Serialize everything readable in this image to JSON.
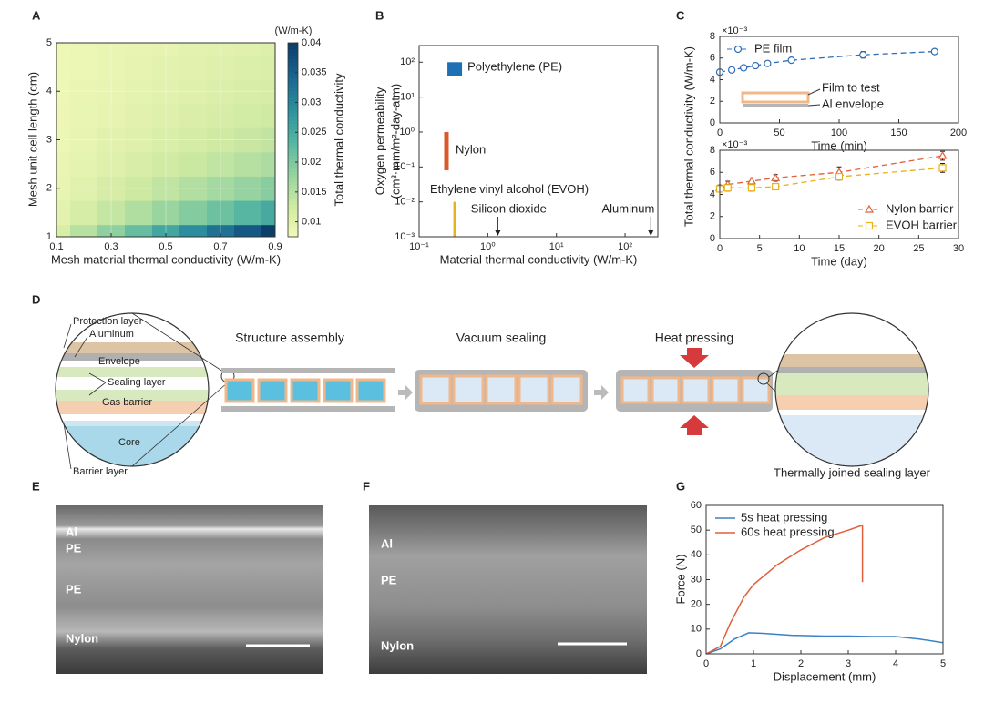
{
  "panel_labels": [
    "A",
    "B",
    "C",
    "D",
    "E",
    "F",
    "G"
  ],
  "chart_data": [
    {
      "type": "heatmap",
      "xlabel": "Mesh material thermal conductivity (W/m-K)",
      "ylabel": "Mesh unit cell length (cm)",
      "x": [
        0.1,
        0.2,
        0.3,
        0.4,
        0.5,
        0.6,
        0.7,
        0.8,
        0.9
      ],
      "y": [
        1,
        1.5,
        2,
        2.5,
        3,
        3.5,
        4,
        4.5,
        5
      ],
      "z": [
        [
          0.0116,
          0.0151,
          0.0187,
          0.0222,
          0.0258,
          0.0293,
          0.0329,
          0.0364,
          0.04
        ],
        [
          0.0099,
          0.0119,
          0.0138,
          0.0157,
          0.0177,
          0.0196,
          0.0216,
          0.0235,
          0.0254
        ],
        [
          0.0093,
          0.0105,
          0.0118,
          0.013,
          0.0143,
          0.0155,
          0.0168,
          0.0181,
          0.0193
        ],
        [
          0.0089,
          0.0098,
          0.0107,
          0.0116,
          0.0125,
          0.0134,
          0.0143,
          0.0152,
          0.0161
        ],
        [
          0.0087,
          0.0094,
          0.0101,
          0.0107,
          0.0114,
          0.0121,
          0.0128,
          0.0135,
          0.0142
        ],
        [
          0.0085,
          0.0091,
          0.0096,
          0.0102,
          0.0107,
          0.0113,
          0.0118,
          0.0123,
          0.0129
        ],
        [
          0.0084,
          0.0089,
          0.0093,
          0.0098,
          0.0102,
          0.0107,
          0.0111,
          0.0116,
          0.012
        ],
        [
          0.0084,
          0.0087,
          0.0091,
          0.0095,
          0.0099,
          0.0102,
          0.0106,
          0.011,
          0.0114
        ],
        [
          0.0083,
          0.0086,
          0.009,
          0.0093,
          0.0096,
          0.0099,
          0.0102,
          0.0105,
          0.0109
        ]
      ],
      "xlim": [
        0.1,
        0.9
      ],
      "xticks": [
        0.1,
        0.3,
        0.5,
        0.7,
        0.9
      ],
      "ylim": [
        1,
        5
      ],
      "yticks": [
        1,
        2,
        3,
        4,
        5
      ],
      "clim": [
        0.0075,
        0.04
      ],
      "cticks": [
        0.01,
        0.015,
        0.02,
        0.025,
        0.03,
        0.035,
        0.04
      ],
      "colorbar_label": "Total thermal conductivity",
      "colorbar_unit": "(W/m-K)",
      "colormap": [
        "#f4f9ba",
        "#cfeaa2",
        "#93d2a0",
        "#54b5a2",
        "#2b8e9d",
        "#1a6590",
        "#0a3f6a"
      ],
      "grid": true
    },
    {
      "type": "range",
      "xlabel": "Material thermal conductivity (W/m-K)",
      "ylabel": [
        "Oxygen permeability",
        "(cm³·mm/m²-day-atm)"
      ],
      "xscale": "log",
      "yscale": "log",
      "xlim": [
        0.1,
        300
      ],
      "xticks": [
        {
          "value": 0.1,
          "label": "10⁻¹"
        },
        {
          "value": 1,
          "label": "10⁰"
        },
        {
          "value": 10,
          "label": "10¹"
        },
        {
          "value": 100,
          "label": "10²"
        }
      ],
      "ylim": [
        0.001,
        300
      ],
      "yticks": [
        {
          "value": 0.001,
          "label": "10⁻³"
        },
        {
          "value": 0.01,
          "label": "10⁻²"
        },
        {
          "value": 0.1,
          "label": "10⁻¹"
        },
        {
          "value": 1,
          "label": "10⁰"
        },
        {
          "value": 10,
          "label": "10¹"
        },
        {
          "value": 100,
          "label": "10²"
        }
      ],
      "series": [
        {
          "name": "Polyethylene (PE)",
          "color": "#1f6fb5",
          "x": 0.33,
          "values": [
            40,
            100
          ]
        },
        {
          "name": "Nylon",
          "color": "#d9592b",
          "x": 0.25,
          "values": [
            0.08,
            1
          ]
        },
        {
          "name": "Ethylene vinyl alcohol (EVOH)",
          "color": "#e8b21c",
          "x": 0.33,
          "values": [
            0.001,
            0.01
          ]
        }
      ],
      "annotations": [
        {
          "label": "Silicon dioxide",
          "x": 1.4
        },
        {
          "label": "Aluminum",
          "x": 237
        }
      ]
    },
    {
      "type": "errorline",
      "xlabel": "Time (min)",
      "ylabel": "Total thermal conductivity (W/m-K)",
      "exponent_label": "×10⁻³",
      "xlim": [
        0,
        200
      ],
      "xticks": [
        0,
        50,
        100,
        150,
        200
      ],
      "ylim": [
        0,
        8
      ],
      "yticks": [
        0,
        2,
        4,
        6,
        8
      ],
      "series": [
        {
          "name": "PE film",
          "color": "#2e6db4",
          "marker": "circle",
          "x": [
            0,
            10,
            20,
            30,
            40,
            60,
            120,
            180
          ],
          "values": [
            4.7,
            4.9,
            5.1,
            5.3,
            5.5,
            5.8,
            6.3,
            6.6
          ],
          "errors": [
            0.15,
            0.15,
            0.15,
            0.1,
            0.1,
            0.1,
            0.3,
            0.15
          ]
        }
      ],
      "legend": "upper left",
      "inset_labels": [
        "Film to test",
        "Al envelope"
      ]
    },
    {
      "type": "errorline",
      "xlabel": "Time (day)",
      "exponent_label": "×10⁻³",
      "xlim": [
        0,
        30
      ],
      "xticks": [
        0,
        5,
        10,
        15,
        20,
        25,
        30
      ],
      "ylim": [
        0,
        8
      ],
      "yticks": [
        0,
        2,
        4,
        6,
        8
      ],
      "series": [
        {
          "name": "Nylon barrier",
          "color": "#e0603a",
          "marker": "triangle",
          "x": [
            0,
            1,
            4,
            7,
            15,
            28
          ],
          "values": [
            4.6,
            4.9,
            5.2,
            5.5,
            6.0,
            7.5
          ],
          "errors": [
            0.25,
            0.3,
            0.3,
            0.3,
            0.5,
            0.4
          ]
        },
        {
          "name": "EVOH barrier",
          "color": "#e8b21c",
          "marker": "square",
          "x": [
            0,
            1,
            4,
            7,
            15,
            28
          ],
          "values": [
            4.5,
            4.6,
            4.6,
            4.7,
            5.6,
            6.4
          ],
          "errors": [
            0.2,
            0.3,
            0.3,
            0.2,
            0.3,
            0.4
          ]
        }
      ],
      "legend": "lower right"
    },
    {
      "type": "line",
      "xlabel": "Displacement (mm)",
      "ylabel": "Force (N)",
      "xlim": [
        0,
        5
      ],
      "xticks": [
        0,
        1,
        2,
        3,
        4,
        5
      ],
      "ylim": [
        0,
        60
      ],
      "yticks": [
        0,
        10,
        20,
        30,
        40,
        50,
        60
      ],
      "series": [
        {
          "name": "5s heat pressing",
          "color": "#3b82c4",
          "x": [
            0,
            0.3,
            0.6,
            0.9,
            1.2,
            1.8,
            2.5,
            3,
            3.5,
            4,
            4.5,
            5
          ],
          "values": [
            0,
            2,
            6,
            8.5,
            8.3,
            7.5,
            7.2,
            7.2,
            7,
            7,
            6,
            4.5
          ]
        },
        {
          "name": "60s heat pressing",
          "color": "#e0603a",
          "x": [
            0,
            0.3,
            0.5,
            0.8,
            1,
            1.5,
            2,
            2.5,
            3,
            3.3,
            3.3
          ],
          "values": [
            0,
            3,
            12,
            23,
            28,
            36,
            42,
            47,
            50,
            52,
            29
          ]
        }
      ],
      "legend": "upper left"
    }
  ],
  "diagram": {
    "circle_labels": [
      "Protection layer",
      "Aluminum",
      "Envelope",
      "Sealing layer",
      "Gas barrier",
      "Core",
      "Barrier layer"
    ],
    "steps": [
      "Structure assembly",
      "Vacuum sealing",
      "Heat pressing"
    ],
    "callout": "Thermally joined sealing layer"
  },
  "images": [
    {
      "labels": [
        "Al",
        "PE",
        "PE",
        "Nylon"
      ]
    },
    {
      "labels": [
        "Al",
        "PE",
        "Nylon"
      ]
    }
  ]
}
